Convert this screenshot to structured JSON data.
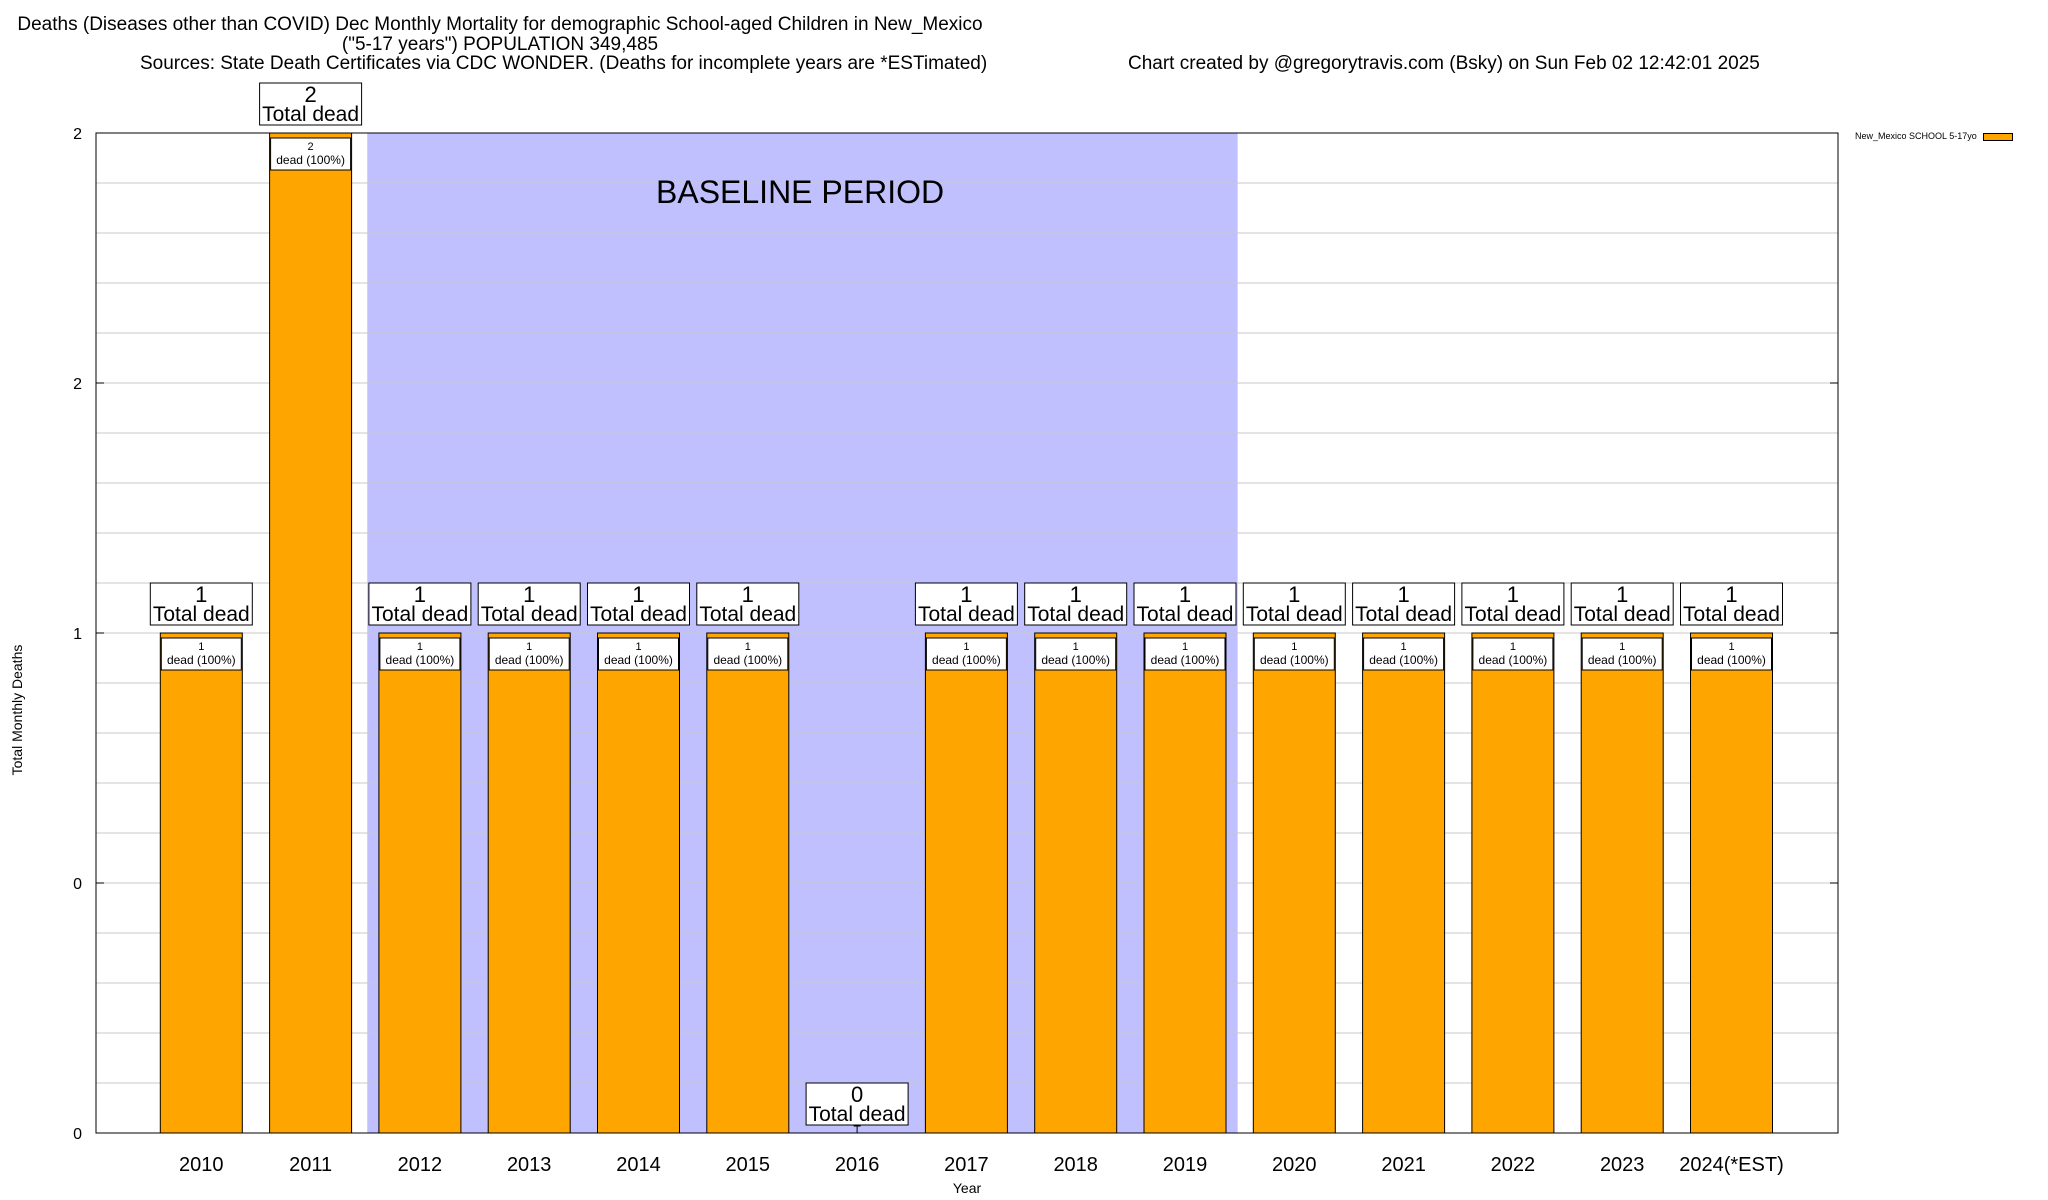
{
  "chart_data": {
    "type": "bar",
    "title": "Deaths (Diseases other than COVID) Dec Monthly Mortality for demographic School-aged Children in New_Mexico",
    "subtitle": "(\"5-17 years\") POPULATION 349,485",
    "sources": "Sources: State Death Certificates via CDC WONDER. (Deaths for incomplete years are *ESTimated)",
    "credit": "Chart created by @gregorytravis.com (Bsky) on Sun Feb 02 12:42:01 2025",
    "xlabel": "Year",
    "ylabel": "Total Monthly Deaths",
    "ylim": [
      0,
      2
    ],
    "y_tick_labels": [
      "0",
      "0",
      "1",
      "2",
      "2"
    ],
    "grid": true,
    "legend": {
      "position": "top-right",
      "label": "New_Mexico SCHOOL 5-17yo"
    },
    "shaded_region": {
      "label": "BASELINE PERIOD",
      "from": "2012",
      "to": "2019"
    },
    "categories": [
      "2010",
      "2011",
      "2012",
      "2013",
      "2014",
      "2015",
      "2016",
      "2017",
      "2018",
      "2019",
      "2020",
      "2021",
      "2022",
      "2023",
      "2024(*EST)"
    ],
    "series": [
      {
        "name": "New_Mexico SCHOOL 5-17yo",
        "values": [
          1,
          2,
          1,
          1,
          1,
          1,
          0,
          1,
          1,
          1,
          1,
          1,
          1,
          1,
          1
        ]
      }
    ],
    "total_label_suffix": "Total dead",
    "segment_labels": [
      "1\ndead (100%)",
      "2\ndead (100%)",
      "1\ndead (100%)",
      "1\ndead (100%)",
      "1\ndead (100%)",
      "1\ndead (100%)",
      "",
      "1\ndead (100%)",
      "1\ndead (100%)",
      "1\ndead (100%)",
      "1\ndead (100%)",
      "1\ndead (100%)",
      "1\ndead (100%)",
      "1\ndead (100%)",
      "1\ndead (100%)"
    ],
    "colors": {
      "bar": "#FFA500",
      "shade": "#C0C0FF",
      "grid": "#C8C8C8"
    }
  }
}
